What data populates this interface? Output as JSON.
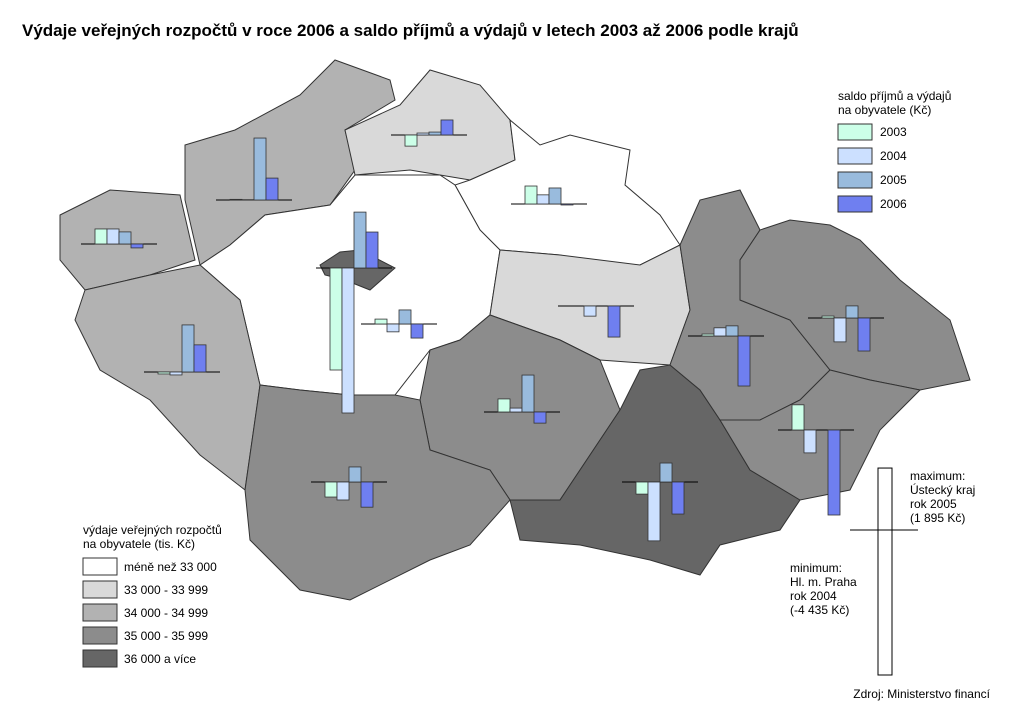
{
  "title": "Výdaje veřejných rozpočtů v roce 2006 a saldo příjmů a výdajů v letech 2003 až 2006 podle krajů",
  "legend_saldo": {
    "title": [
      "saldo příjmů a výdajů",
      "na obyvatele (Kč)"
    ],
    "series": [
      {
        "name": "2003",
        "color": "#ccffe8"
      },
      {
        "name": "2004",
        "color": "#cce0ff"
      },
      {
        "name": "2005",
        "color": "#99bbdd"
      },
      {
        "name": "2006",
        "color": "#6f7ff0"
      }
    ]
  },
  "legend_expenses": {
    "title": [
      "výdaje veřejných rozpočtů",
      "na obyvatele (tis. Kč)"
    ],
    "classes": [
      {
        "label": "méně než 33 000",
        "color": "#ffffff"
      },
      {
        "label": "33 000 - 33 999",
        "color": "#d9d9d9"
      },
      {
        "label": "34 000 - 34 999",
        "color": "#b2b2b2"
      },
      {
        "label": "35 000 - 35 999",
        "color": "#8c8c8c"
      },
      {
        "label": "36 000 a více",
        "color": "#666666"
      }
    ]
  },
  "regions": [
    {
      "color": "#b2b2b2",
      "values": [
        460,
        460,
        370,
        -120
      ]
    },
    {
      "color": "#b2b2b2",
      "values": [
        20,
        10,
        1895,
        670
      ]
    },
    {
      "color": "#d9d9d9",
      "values": [
        -340,
        60,
        90,
        460
      ]
    },
    {
      "color": "#ffffff",
      "values": [
        550,
        280,
        490,
        -30
      ]
    },
    {
      "color": "#ffffff",
      "values": [
        150,
        -240,
        430,
        -430
      ]
    },
    {
      "color": "#666666",
      "values": [
        -3120,
        -4435,
        1710,
        1100
      ]
    },
    {
      "color": "#d9d9d9",
      "values": [
        0,
        -310,
        0,
        -950
      ]
    },
    {
      "color": "#b2b2b2",
      "values": [
        -60,
        -90,
        1440,
        830
      ]
    },
    {
      "color": "#8c8c8c",
      "values": [
        400,
        120,
        1130,
        -340
      ]
    },
    {
      "color": "#8c8c8c",
      "values": [
        -460,
        -550,
        460,
        -770
      ]
    },
    {
      "color": "#666666",
      "values": [
        -370,
        -1800,
        580,
        -980
      ]
    },
    {
      "color": "#8c8c8c",
      "values": [
        60,
        250,
        310,
        -1530
      ]
    },
    {
      "color": "#8c8c8c",
      "values": [
        60,
        -730,
        370,
        -1010
      ]
    },
    {
      "color": "#8c8c8c",
      "values": [
        770,
        -700,
        0,
        -2600
      ]
    }
  ],
  "scale": {
    "max": 1895,
    "min": -4435,
    "max_label": [
      "maximum:",
      "Ústecký kraj",
      "rok 2005",
      "(1 895 Kč)"
    ],
    "min_label": [
      "minimum:",
      "Hl. m. Praha",
      "rok 2004",
      "(-4 435 Kč)"
    ]
  },
  "source": "Zdroj: Ministerstvo financí"
}
